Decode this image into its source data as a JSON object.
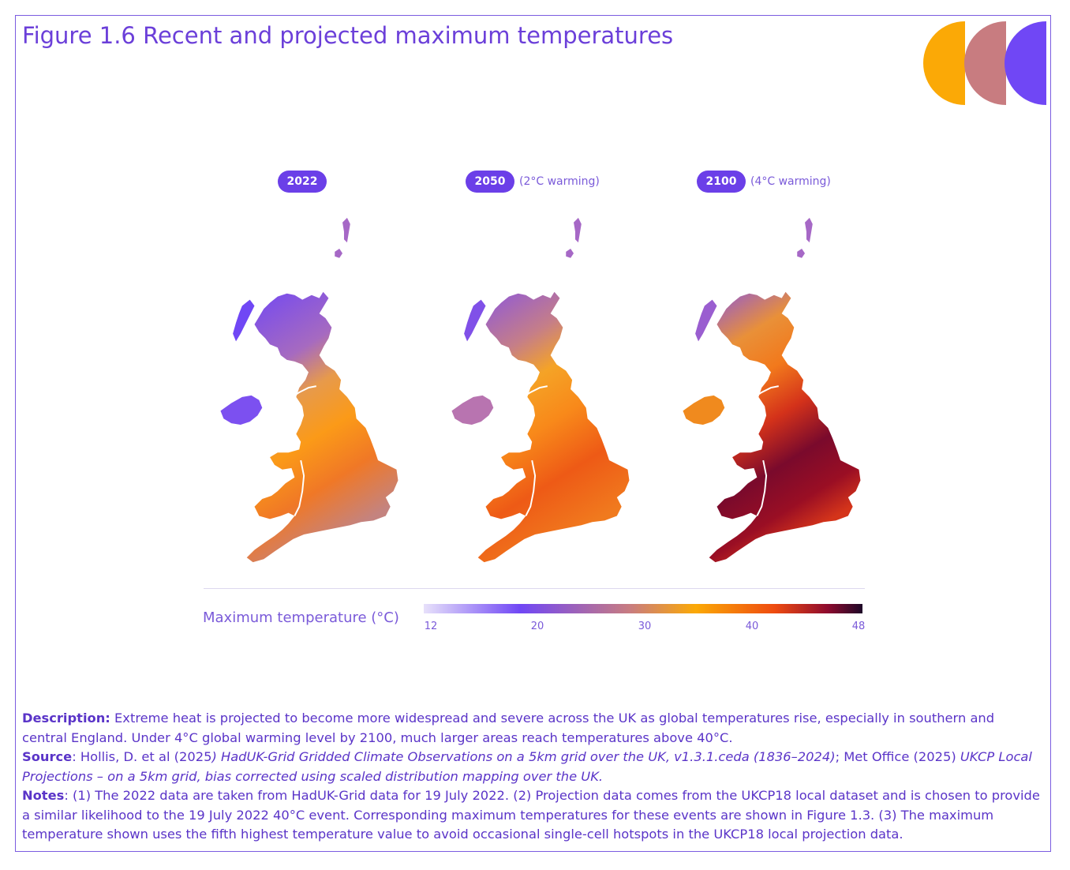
{
  "title": "Figure 1.6 Recent and projected maximum temperatures",
  "colors": {
    "accent": "#6B3FD9",
    "pill": "#6B3FE8",
    "logo": [
      "#FBA906",
      "#C87C80",
      "#7047F5"
    ],
    "scale": [
      "#E7E1FA",
      "#7047F5",
      "#C87C80",
      "#FBA906",
      "#EE4B10",
      "#8E0B2E",
      "#1E0828"
    ]
  },
  "panels": [
    {
      "year": "2022",
      "warming": ""
    },
    {
      "year": "2050",
      "warming": "(2°C warming)"
    },
    {
      "year": "2100",
      "warming": "(4°C warming)"
    }
  ],
  "legend": {
    "title": "Maximum temperature (°C)",
    "ticks": [
      "12",
      "20",
      "30",
      "40",
      "48"
    ],
    "min": 12,
    "max": 48
  },
  "footer": {
    "description_label": "Description:",
    "description_text": "Extreme heat is projected to become more widespread and severe across the UK as global temperatures rise, especially in southern and central England. Under 4°C global warming level by 2100, much larger areas reach temperatures above 40°C.",
    "source_label": "Source",
    "source_text_1": ": Hollis, D. et al (2025",
    "source_italic_1": ") HadUK-Grid Gridded Climate Observations on a 5km grid over the UK, v1.3.1.ceda (1836–2024)",
    "source_text_2": "; Met Office (2025) ",
    "source_italic_2": "UKCP Local Projections – on a 5km grid, bias corrected using scaled distribution mapping over the UK.",
    "notes_label": "Notes",
    "notes_text": ": (1) The 2022 data are taken from HadUK-Grid data for 19 July 2022. (2) Projection data comes from the UKCP18 local dataset and is chosen to provide a similar likelihood to the 19 July 2022 40°C event. Corresponding maximum temperatures for these events are shown in Figure 1.3. (3) The maximum temperature shown uses the fifth highest temperature value to avoid occasional single-cell hotspots in the UKCP18 local projection data."
  }
}
